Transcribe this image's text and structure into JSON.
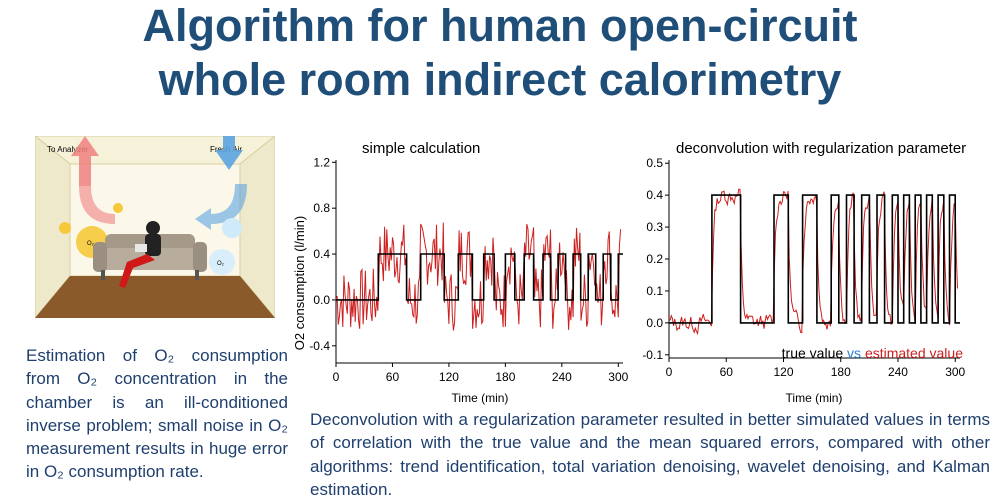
{
  "title": {
    "line1": "Algorithm for human open-circuit",
    "line2": "whole room indirect calorimetry"
  },
  "room": {
    "to_analyzer": "To Analyzer",
    "fresh_air": "Fresh Air",
    "o2_label": "O₂",
    "o2_label2": "O₂",
    "colors": {
      "outflow": "#f08080",
      "inflow": "#5ba3e0"
    }
  },
  "left_text": "Estimation of O₂ consumption from O₂ concentration in the chamber is an ill-conditioned inverse problem; small noise in O₂ measurement results in huge error in O₂ consumption rate.",
  "bottom_text": "Deconvolution with a regularization parameter resulted in better simulated values in terms of correlation with the true value and the mean squared errors, compared with other algorithms: trend identification, total variation denoising, wavelet denoising, and Kalman estimation.",
  "legend": {
    "true_label": "true value",
    "vs_label": "vs",
    "est_label": "estimated value"
  },
  "chart_data": [
    {
      "type": "line",
      "title": "simple calculation",
      "xlabel": "Time (min)",
      "ylabel": "O2 consumption (l/min)",
      "xlim": [
        0,
        305
      ],
      "ylim": [
        -0.55,
        1.22
      ],
      "xticks": [
        0,
        60,
        120,
        180,
        240,
        300
      ],
      "xtick_labels": [
        "0",
        "60",
        "120",
        "180",
        "240",
        "300"
      ],
      "yticks": [
        -0.4,
        0.0,
        0.4,
        0.8,
        1.2
      ],
      "ytick_labels": [
        "-0.4",
        "0.0",
        "0.4",
        "0.8",
        "1.2"
      ],
      "series": [
        {
          "name": "true value",
          "color": "#000000",
          "segments": [
            [
              0,
              45,
              0
            ],
            [
              45,
              75,
              0.4
            ],
            [
              75,
              90,
              0
            ],
            [
              90,
              115,
              0.4
            ],
            [
              115,
              130,
              0
            ],
            [
              130,
              145,
              0.4
            ],
            [
              145,
              157,
              0
            ],
            [
              157,
              168,
              0.4
            ],
            [
              168,
              180,
              0
            ],
            [
              180,
              190,
              0.4
            ],
            [
              190,
              200,
              0
            ],
            [
              200,
              210,
              0.4
            ],
            [
              210,
              220,
              0
            ],
            [
              220,
              228,
              0.4
            ],
            [
              228,
              236,
              0
            ],
            [
              236,
              244,
              0.4
            ],
            [
              244,
              252,
              0
            ],
            [
              252,
              260,
              0.4
            ],
            [
              260,
              268,
              0
            ],
            [
              268,
              276,
              0.4
            ],
            [
              276,
              284,
              0
            ],
            [
              284,
              292,
              0.4
            ],
            [
              292,
              300,
              0
            ],
            [
              300,
              305,
              0.4
            ]
          ]
        },
        {
          "name": "estimated value",
          "color": "#cc1f1f",
          "noise_amplitude": 0.28
        }
      ]
    },
    {
      "type": "line",
      "title": "deconvolution with regularization parameter",
      "xlabel": "Time (min)",
      "ylabel": "",
      "xlim": [
        0,
        305
      ],
      "ylim": [
        -0.11,
        0.51
      ],
      "xticks": [
        0,
        60,
        120,
        180,
        240,
        300
      ],
      "xtick_labels": [
        "0",
        "60",
        "120",
        "180",
        "240",
        "300"
      ],
      "yticks": [
        -0.1,
        0.0,
        0.1,
        0.2,
        0.3,
        0.4,
        0.5
      ],
      "ytick_labels": [
        "-0.1",
        "0.0",
        "0.1",
        "0.2",
        "0.3",
        "0.4",
        "0.5"
      ],
      "series": [
        {
          "name": "true value",
          "color": "#000000",
          "segments": [
            [
              0,
              45,
              0
            ],
            [
              45,
              75,
              0.4
            ],
            [
              75,
              110,
              0
            ],
            [
              110,
              125,
              0.4
            ],
            [
              125,
              140,
              0
            ],
            [
              140,
              155,
              0.4
            ],
            [
              155,
              170,
              0
            ],
            [
              170,
              178,
              0.4
            ],
            [
              178,
              186,
              0
            ],
            [
              186,
              194,
              0.4
            ],
            [
              194,
              202,
              0
            ],
            [
              202,
              210,
              0.4
            ],
            [
              210,
              218,
              0
            ],
            [
              218,
              226,
              0.4
            ],
            [
              226,
              234,
              0
            ],
            [
              234,
              240,
              0.4
            ],
            [
              240,
              246,
              0
            ],
            [
              246,
              252,
              0.4
            ],
            [
              252,
              258,
              0
            ],
            [
              258,
              264,
              0.4
            ],
            [
              264,
              270,
              0
            ],
            [
              270,
              276,
              0.4
            ],
            [
              276,
              282,
              0
            ],
            [
              282,
              288,
              0.4
            ],
            [
              288,
              294,
              0
            ],
            [
              294,
              300,
              0.4
            ],
            [
              300,
              305,
              0
            ]
          ]
        },
        {
          "name": "estimated value",
          "color": "#cc1f1f",
          "noise_amplitude": 0.05
        }
      ]
    }
  ]
}
